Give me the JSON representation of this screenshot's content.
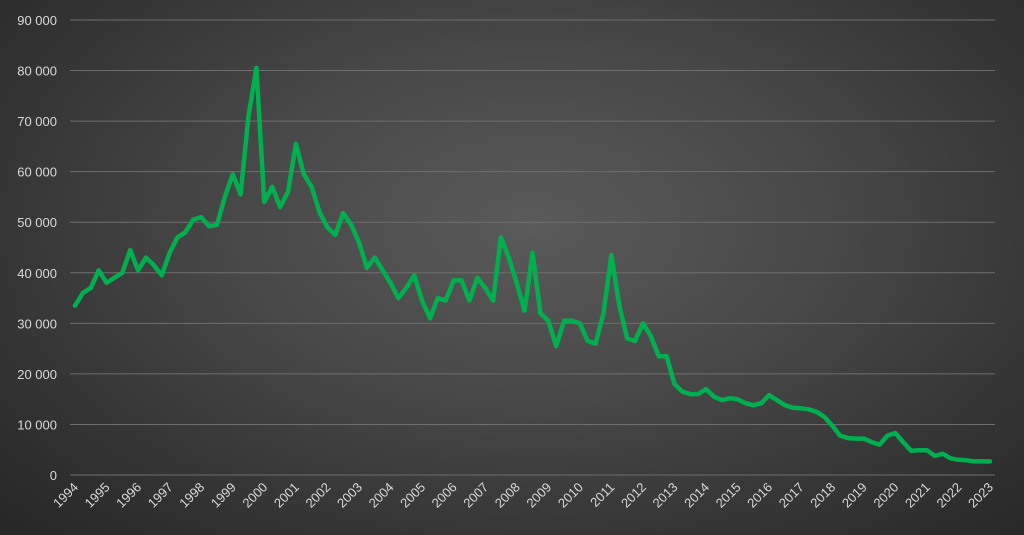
{
  "chart_data": {
    "type": "line",
    "title": "",
    "xlabel": "",
    "ylabel": "",
    "ylim": [
      0,
      90000
    ],
    "grid": true,
    "legend": "none",
    "y_ticks": [
      0,
      10000,
      20000,
      30000,
      40000,
      50000,
      60000,
      70000,
      80000,
      90000
    ],
    "y_tick_labels": [
      "0",
      "10 000",
      "20 000",
      "30 000",
      "40 000",
      "50 000",
      "60 000",
      "70 000",
      "80 000",
      "90 000"
    ],
    "x_tick_labels": [
      "1994",
      "1995",
      "1996",
      "1997",
      "1998",
      "1999",
      "2000",
      "2001",
      "2002",
      "2003",
      "2004",
      "2005",
      "2006",
      "2007",
      "2008",
      "2009",
      "2010",
      "2011",
      "2012",
      "2013",
      "2014",
      "2015",
      "2016",
      "2017",
      "2018",
      "2019",
      "2020",
      "2021",
      "2022",
      "2023"
    ],
    "x_period": "quarterly",
    "series": [
      {
        "color": "#00b050",
        "values": [
          33500,
          36000,
          37000,
          40500,
          38000,
          39000,
          40000,
          44500,
          40500,
          43000,
          41500,
          39500,
          44000,
          47000,
          48000,
          50500,
          51000,
          49200,
          49500,
          55000,
          59500,
          55500,
          71000,
          80500,
          54000,
          57000,
          53000,
          56000,
          65500,
          59500,
          57000,
          52000,
          49000,
          47500,
          51800,
          49500,
          46000,
          41000,
          43000,
          40500,
          38000,
          35000,
          37000,
          39500,
          34500,
          31000,
          35000,
          34500,
          38500,
          38500,
          34500,
          39000,
          37000,
          34500,
          47000,
          43000,
          38000,
          32500,
          44000,
          32000,
          30500,
          25500,
          30500,
          30500,
          30000,
          26500,
          26000,
          32000,
          43500,
          33500,
          27000,
          26500,
          30000,
          27500,
          23500,
          23500,
          18000,
          16500,
          16000,
          16000,
          17000,
          15500,
          14800,
          15200,
          15000,
          14200,
          13800,
          14200,
          15800,
          14800,
          13800,
          13300,
          13200,
          13000,
          12500,
          11500,
          9800,
          7800,
          7300,
          7200,
          7200,
          6500,
          6000,
          7800,
          8300,
          6500,
          4800,
          4900,
          4900,
          3800,
          4200,
          3300,
          3000,
          2900,
          2700,
          2700,
          2700
        ]
      }
    ]
  }
}
